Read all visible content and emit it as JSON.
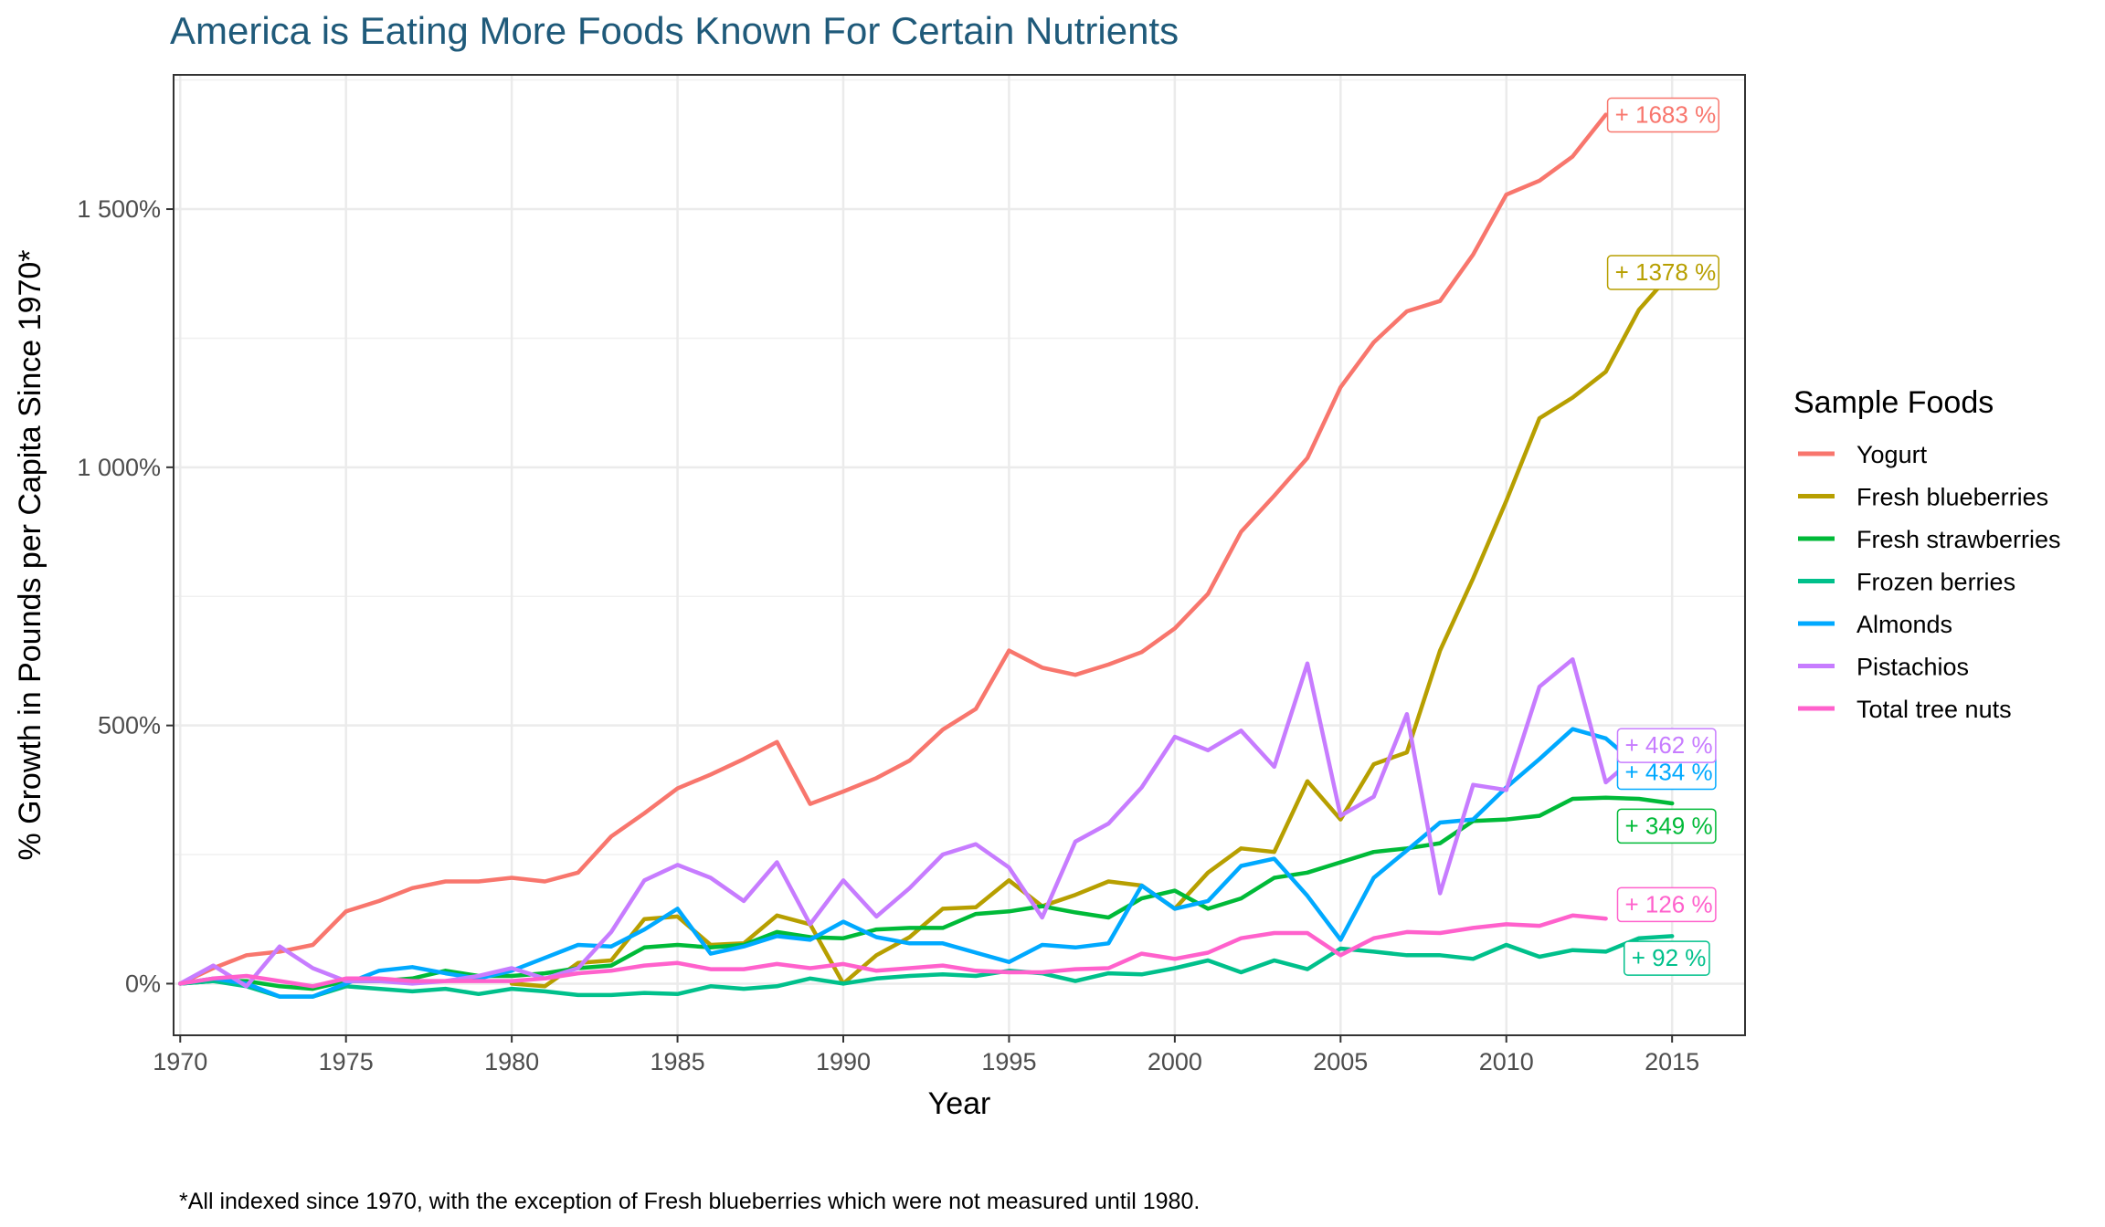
{
  "title": "America is Eating More Foods Known For Certain Nutrients",
  "footnote": "*All indexed since 1970, with the exception of Fresh blueberries which were not measured until 1980.",
  "chart_data": {
    "type": "line",
    "title": "America is Eating More Foods Known For Certain Nutrients",
    "xlabel": "Year",
    "ylabel": "% Growth in Pounds per Capita Since 1970*",
    "xlim": [
      1969.8,
      2017.2
    ],
    "ylim": [
      -100,
      1760
    ],
    "x_ticks": [
      1970,
      1975,
      1980,
      1985,
      1990,
      1995,
      2000,
      2005,
      2010,
      2015
    ],
    "x_tick_labels": [
      "1970",
      "1975",
      "1980",
      "1985",
      "1990",
      "1995",
      "2000",
      "2005",
      "2010",
      "2015"
    ],
    "y_ticks": [
      0,
      500,
      1000,
      1500
    ],
    "y_tick_labels": [
      "0%",
      "500%",
      "1 000%",
      "1 500%"
    ],
    "grid": true,
    "legend_title": "Sample Foods",
    "legend_position": "right",
    "series": [
      {
        "name": "Yogurt",
        "color": "#f8766d",
        "end_label": "+ 1683 %",
        "x": [
          1970,
          1971,
          1972,
          1973,
          1974,
          1975,
          1976,
          1977,
          1978,
          1979,
          1980,
          1981,
          1982,
          1983,
          1984,
          1985,
          1986,
          1987,
          1988,
          1989,
          1990,
          1991,
          1992,
          1993,
          1994,
          1995,
          1996,
          1997,
          1998,
          1999,
          2000,
          2001,
          2002,
          2003,
          2004,
          2005,
          2006,
          2007,
          2008,
          2009,
          2010,
          2011,
          2012,
          2013
        ],
        "y": [
          0,
          30,
          55,
          62,
          75,
          140,
          160,
          185,
          198,
          198,
          205,
          198,
          215,
          285,
          330,
          378,
          405,
          435,
          468,
          348,
          372,
          398,
          432,
          492,
          532,
          645,
          612,
          598,
          618,
          642,
          688,
          755,
          875,
          945,
          1018,
          1155,
          1242,
          1302,
          1322,
          1412,
          1528,
          1555,
          1602,
          1683
        ]
      },
      {
        "name": "Fresh blueberries",
        "color": "#b79f00",
        "end_label": "+ 1378 %",
        "x": [
          1980,
          1981,
          1982,
          1983,
          1984,
          1985,
          1986,
          1987,
          1988,
          1989,
          1990,
          1991,
          1992,
          1993,
          1994,
          1995,
          1996,
          1997,
          1998,
          1999,
          2000,
          2001,
          2002,
          2003,
          2004,
          2005,
          2006,
          2007,
          2008,
          2009,
          2010,
          2011,
          2012,
          2013,
          2014,
          2015
        ],
        "y": [
          0,
          -5,
          40,
          45,
          125,
          130,
          75,
          78,
          132,
          115,
          0,
          55,
          90,
          145,
          148,
          200,
          150,
          172,
          198,
          190,
          145,
          215,
          262,
          255,
          392,
          318,
          425,
          448,
          645,
          785,
          935,
          1095,
          1135,
          1185,
          1305,
          1378
        ]
      },
      {
        "name": "Fresh strawberries",
        "color": "#00ba38",
        "end_label": "+ 349 %",
        "x": [
          1970,
          1971,
          1972,
          1973,
          1974,
          1975,
          1976,
          1977,
          1978,
          1979,
          1980,
          1981,
          1982,
          1983,
          1984,
          1985,
          1986,
          1987,
          1988,
          1989,
          1990,
          1991,
          1992,
          1993,
          1994,
          1995,
          1996,
          1997,
          1998,
          1999,
          2000,
          2001,
          2002,
          2003,
          2004,
          2005,
          2006,
          2007,
          2008,
          2009,
          2010,
          2011,
          2012,
          2013,
          2014,
          2015
        ],
        "y": [
          0,
          5,
          5,
          -5,
          -10,
          5,
          5,
          10,
          25,
          15,
          15,
          20,
          30,
          35,
          70,
          75,
          70,
          75,
          100,
          90,
          88,
          105,
          108,
          108,
          135,
          140,
          150,
          138,
          128,
          165,
          180,
          145,
          165,
          205,
          215,
          235,
          255,
          262,
          272,
          315,
          318,
          325,
          358,
          360,
          358,
          349
        ]
      },
      {
        "name": "Frozen berries",
        "color": "#00c08b",
        "end_label": "+ 92 %",
        "x": [
          1970,
          1971,
          1972,
          1973,
          1974,
          1975,
          1976,
          1977,
          1978,
          1979,
          1980,
          1981,
          1982,
          1983,
          1984,
          1985,
          1986,
          1987,
          1988,
          1989,
          1990,
          1991,
          1992,
          1993,
          1994,
          1995,
          1996,
          1997,
          1998,
          1999,
          2000,
          2001,
          2002,
          2003,
          2004,
          2005,
          2006,
          2007,
          2008,
          2009,
          2010,
          2011,
          2012,
          2013,
          2014,
          2015
        ],
        "y": [
          0,
          5,
          -5,
          -25,
          -25,
          -5,
          -10,
          -15,
          -10,
          -20,
          -10,
          -15,
          -22,
          -22,
          -18,
          -20,
          -5,
          -10,
          -5,
          10,
          0,
          10,
          15,
          18,
          15,
          25,
          20,
          5,
          20,
          18,
          30,
          45,
          22,
          45,
          28,
          68,
          62,
          55,
          55,
          48,
          75,
          52,
          65,
          62,
          88,
          92
        ]
      },
      {
        "name": "Almonds",
        "color": "#00a9ff",
        "end_label": "+ 434 %",
        "x": [
          1970,
          1971,
          1972,
          1973,
          1974,
          1975,
          1976,
          1977,
          1978,
          1979,
          1980,
          1981,
          1982,
          1983,
          1984,
          1985,
          1986,
          1987,
          1988,
          1989,
          1990,
          1991,
          1992,
          1993,
          1994,
          1995,
          1996,
          1997,
          1998,
          1999,
          2000,
          2001,
          2002,
          2003,
          2004,
          2005,
          2006,
          2007,
          2008,
          2009,
          2010,
          2011,
          2012,
          2013,
          2014,
          2015
        ],
        "y": [
          0,
          10,
          0,
          -25,
          -25,
          0,
          25,
          32,
          20,
          10,
          25,
          50,
          75,
          72,
          105,
          145,
          58,
          72,
          92,
          85,
          120,
          90,
          78,
          78,
          60,
          42,
          75,
          70,
          78,
          190,
          145,
          160,
          228,
          242,
          170,
          85,
          205,
          258,
          312,
          318,
          380,
          435,
          493,
          475,
          420,
          434
        ]
      },
      {
        "name": "Pistachios",
        "color": "#c77cff",
        "end_label": "+ 462 %",
        "x": [
          1970,
          1971,
          1972,
          1973,
          1974,
          1975,
          1976,
          1977,
          1978,
          1979,
          1980,
          1981,
          1982,
          1983,
          1984,
          1985,
          1986,
          1987,
          1988,
          1989,
          1990,
          1991,
          1992,
          1993,
          1994,
          1995,
          1996,
          1997,
          1998,
          1999,
          2000,
          2001,
          2002,
          2003,
          2004,
          2005,
          2006,
          2007,
          2008,
          2009,
          2010,
          2011,
          2012,
          2013,
          2014,
          2015
        ],
        "y": [
          0,
          35,
          -5,
          72,
          30,
          5,
          5,
          0,
          5,
          15,
          30,
          10,
          30,
          100,
          200,
          230,
          205,
          160,
          235,
          115,
          200,
          130,
          185,
          250,
          270,
          225,
          128,
          275,
          310,
          380,
          478,
          452,
          490,
          420,
          620,
          325,
          362,
          522,
          175,
          385,
          375,
          575,
          628,
          390,
          445,
          462
        ]
      },
      {
        "name": "Total tree nuts",
        "color": "#ff61cc",
        "end_label": "+ 126 %",
        "x": [
          1970,
          1971,
          1972,
          1973,
          1974,
          1975,
          1976,
          1977,
          1978,
          1979,
          1980,
          1981,
          1982,
          1983,
          1984,
          1985,
          1986,
          1987,
          1988,
          1989,
          1990,
          1991,
          1992,
          1993,
          1994,
          1995,
          1996,
          1997,
          1998,
          1999,
          2000,
          2001,
          2002,
          2003,
          2004,
          2005,
          2006,
          2007,
          2008,
          2009,
          2010,
          2011,
          2012,
          2013
        ],
        "y": [
          0,
          10,
          15,
          5,
          -5,
          10,
          10,
          5,
          5,
          5,
          5,
          10,
          20,
          25,
          35,
          40,
          28,
          28,
          38,
          30,
          38,
          25,
          30,
          35,
          25,
          22,
          22,
          28,
          30,
          58,
          48,
          60,
          88,
          98,
          98,
          55,
          88,
          100,
          98,
          108,
          115,
          112,
          132,
          126
        ]
      }
    ]
  }
}
